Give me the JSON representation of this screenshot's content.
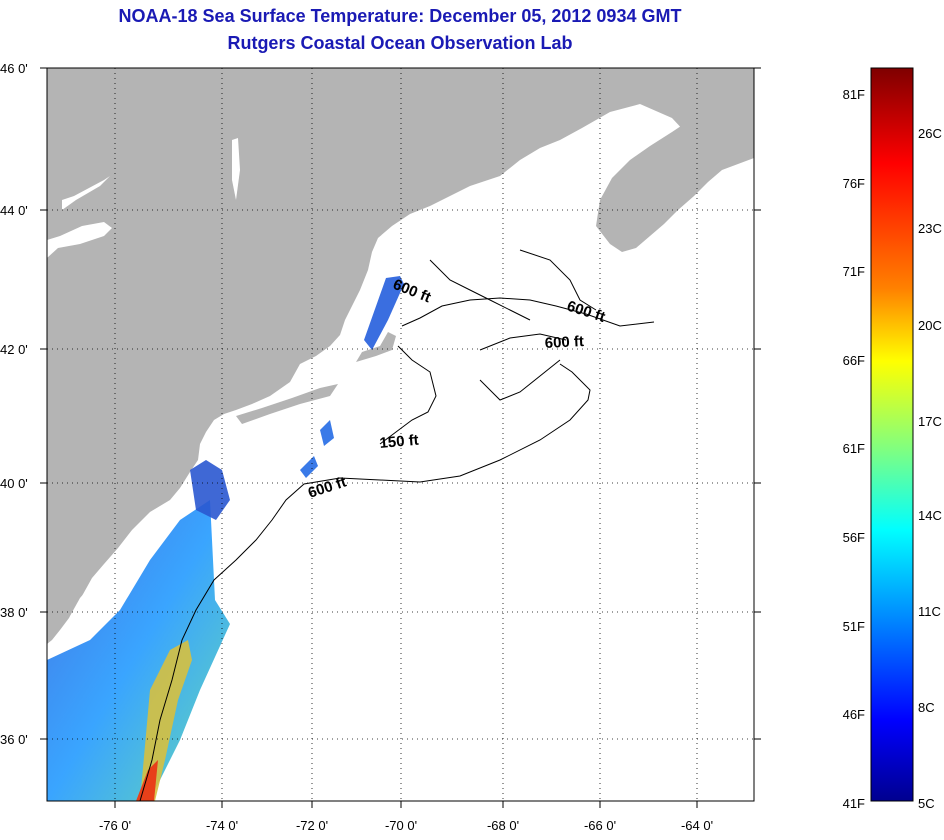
{
  "title": "NOAA-18 Sea Surface Temperature:  December 05, 2012 0934 GMT",
  "subtitle": "Rutgers Coastal Ocean Observation Lab",
  "map": {
    "lat_ticks": [
      "46 0'",
      "44 0'",
      "42 0'",
      "40 0'",
      "38 0'",
      "36 0'"
    ],
    "lon_ticks": [
      "-76 0'",
      "-74 0'",
      "-72 0'",
      "-70 0'",
      "-68 0'",
      "-66 0'",
      "-64 0'"
    ],
    "contour_labels": [
      "600 ft",
      "600 ft",
      "600 ft",
      "150 ft",
      "600 ft"
    ],
    "colors": {
      "land": "#b4b4b4",
      "ocean": "#ffffff",
      "grid": "#000000"
    }
  },
  "colorbar": {
    "fahrenheit_labels": [
      "81F",
      "76F",
      "71F",
      "66F",
      "61F",
      "56F",
      "51F",
      "46F",
      "41F"
    ],
    "celsius_labels": [
      "26C",
      "23C",
      "20C",
      "17C",
      "14C",
      "11C",
      "8C",
      "5C"
    ],
    "colors": [
      "#7f0000",
      "#ff0000",
      "#ff8000",
      "#ffff00",
      "#80ff80",
      "#00ffff",
      "#0080ff",
      "#0000ff",
      "#00008f"
    ]
  }
}
